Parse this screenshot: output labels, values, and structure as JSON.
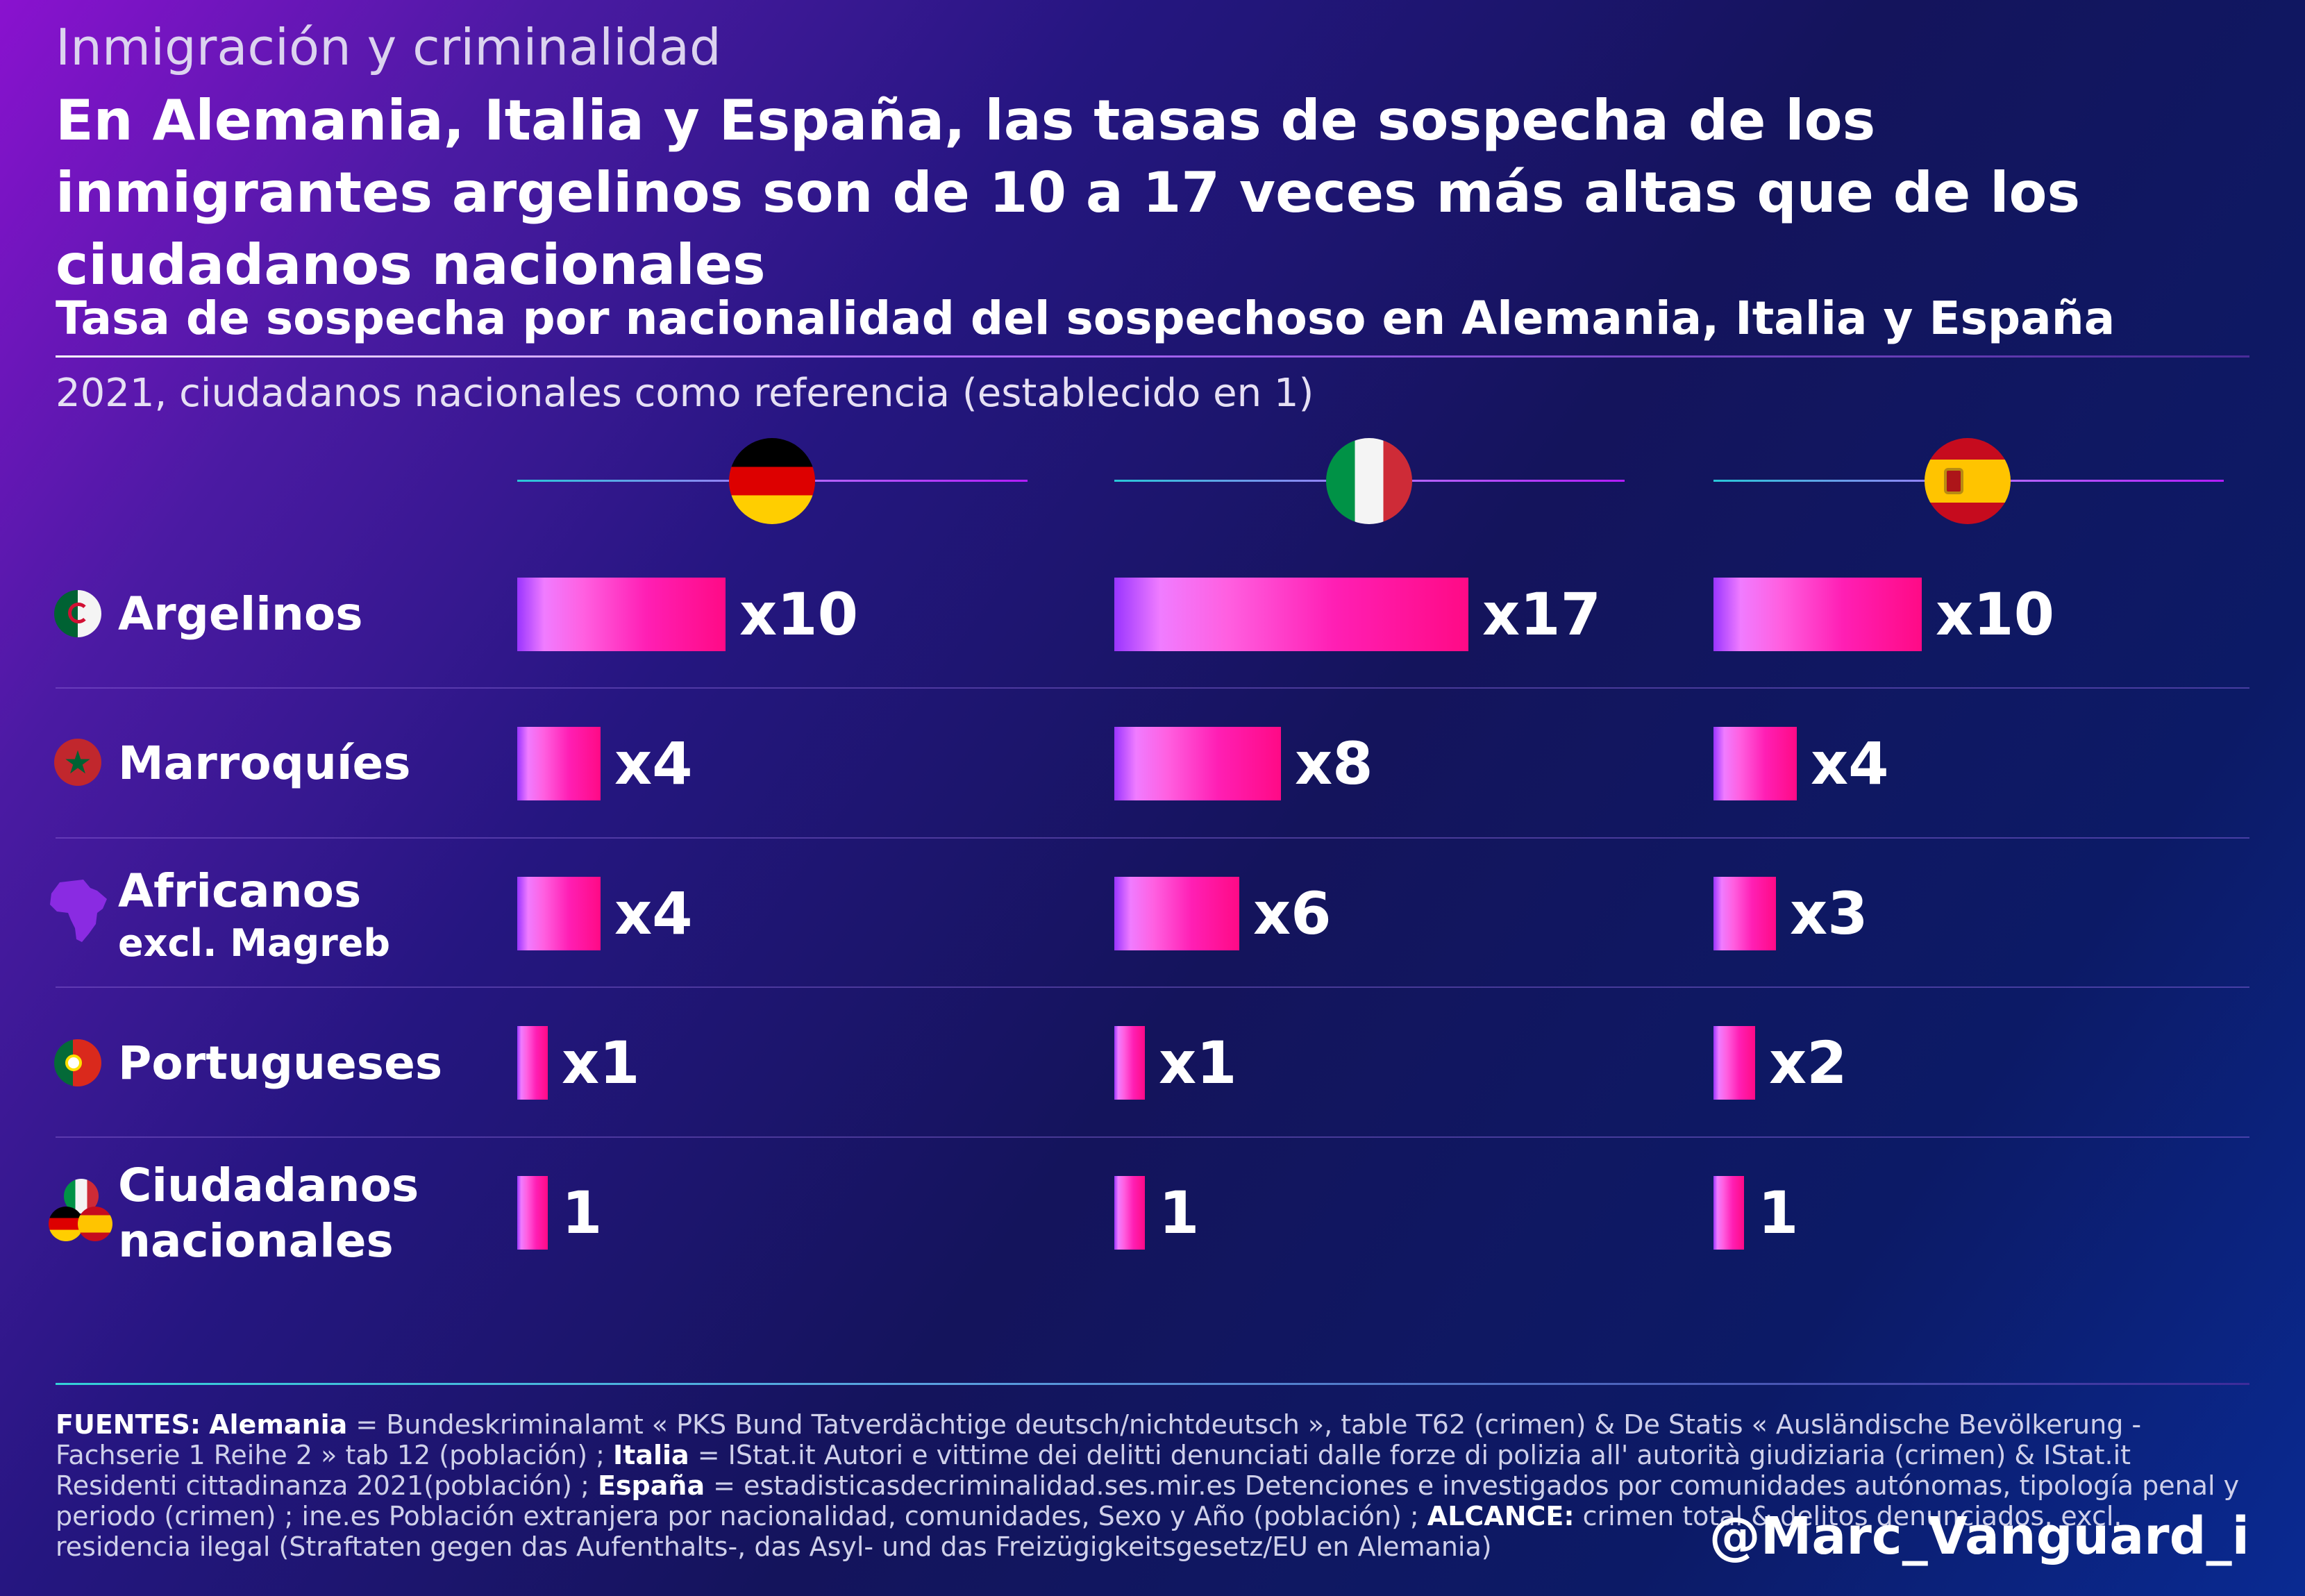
{
  "header": {
    "kicker": "Inmigración y criminalidad",
    "headline": "En Alemania, Italia y España, las tasas de sospecha de los inmigrantes argelinos son de 10 a 17 veces más altas que de los ciudadanos nacionales"
  },
  "chart_data": {
    "type": "bar",
    "orientation": "horizontal",
    "title": "Tasa de sospecha por nacionalidad del sospechoso en Alemania, Italia y España",
    "subtitle": "2021, ciudadanos nacionales como referencia (establecido en 1)",
    "panels": [
      {
        "country_icon": "germany-flag-icon",
        "values": [
          10,
          4,
          4,
          1,
          1
        ],
        "labels": [
          "x10",
          "x4",
          "x4",
          "x1",
          "1"
        ]
      },
      {
        "country_icon": "italy-flag-icon",
        "values": [
          17,
          8,
          6,
          1,
          1
        ],
        "labels": [
          "x17",
          "x8",
          "x6",
          "x1",
          "1"
        ]
      },
      {
        "country_icon": "spain-flag-icon",
        "values": [
          10,
          4,
          3,
          2,
          1
        ],
        "labels": [
          "x10",
          "x4",
          "x3",
          "x2",
          "1"
        ]
      }
    ],
    "categories": [
      {
        "label": "Argelinos",
        "sub": "",
        "icon": "algeria-flag-icon"
      },
      {
        "label": "Marroquíes",
        "sub": "",
        "icon": "morocco-flag-icon"
      },
      {
        "label": "Africanos",
        "sub": "excl. Magreb",
        "icon": "africa-map-icon"
      },
      {
        "label": "Portugueses",
        "sub": "",
        "icon": "portugal-flag-icon"
      },
      {
        "label": "Ciudadanos nacionales",
        "sub": "",
        "icon": "national-flags-icon"
      }
    ],
    "colors": {
      "bar_start": "#9a35ff",
      "bar_end": "#ff0a86",
      "accent_rule": "#29c7d8"
    }
  },
  "footer": {
    "sources_prefix": "FUENTES:",
    "germany_label": "Alemania",
    "germany_text": " = Bundeskriminalamt « PKS Bund Tatverdächtige deutsch/nichtdeutsch », table T62 (crimen) & De Statis « Ausländische Bevölkerung - Fachserie 1 Reihe 2 » tab 12 (población) ; ",
    "italy_label": "Italia",
    "italy_text": " = IStat.it Autori e vittime dei delitti denunciati dalle forze di polizia all' autorità giudiziaria (crimen) & IStat.it Residenti cittadinanza 2021(población) ; ",
    "spain_label": "España",
    "spain_text": " = estadisticasdecriminalidad.ses.mir.es Detenciones e investigados por comunidades autónomas, tipología penal y periodo (crimen) ; ine.es Población extranjera por nacionalidad, comunidades, Sexo y Año (población) ; ",
    "scope_label": "ALCANCE:",
    "scope_text": " crimen total & delitos denunciados, excl. residencia ilegal (Straftaten gegen das Aufenthalts-, das Asyl- und das Freizügigkeitsgesetz/EU en Alemania)",
    "handle": "@Marc_Vanguard_i"
  }
}
